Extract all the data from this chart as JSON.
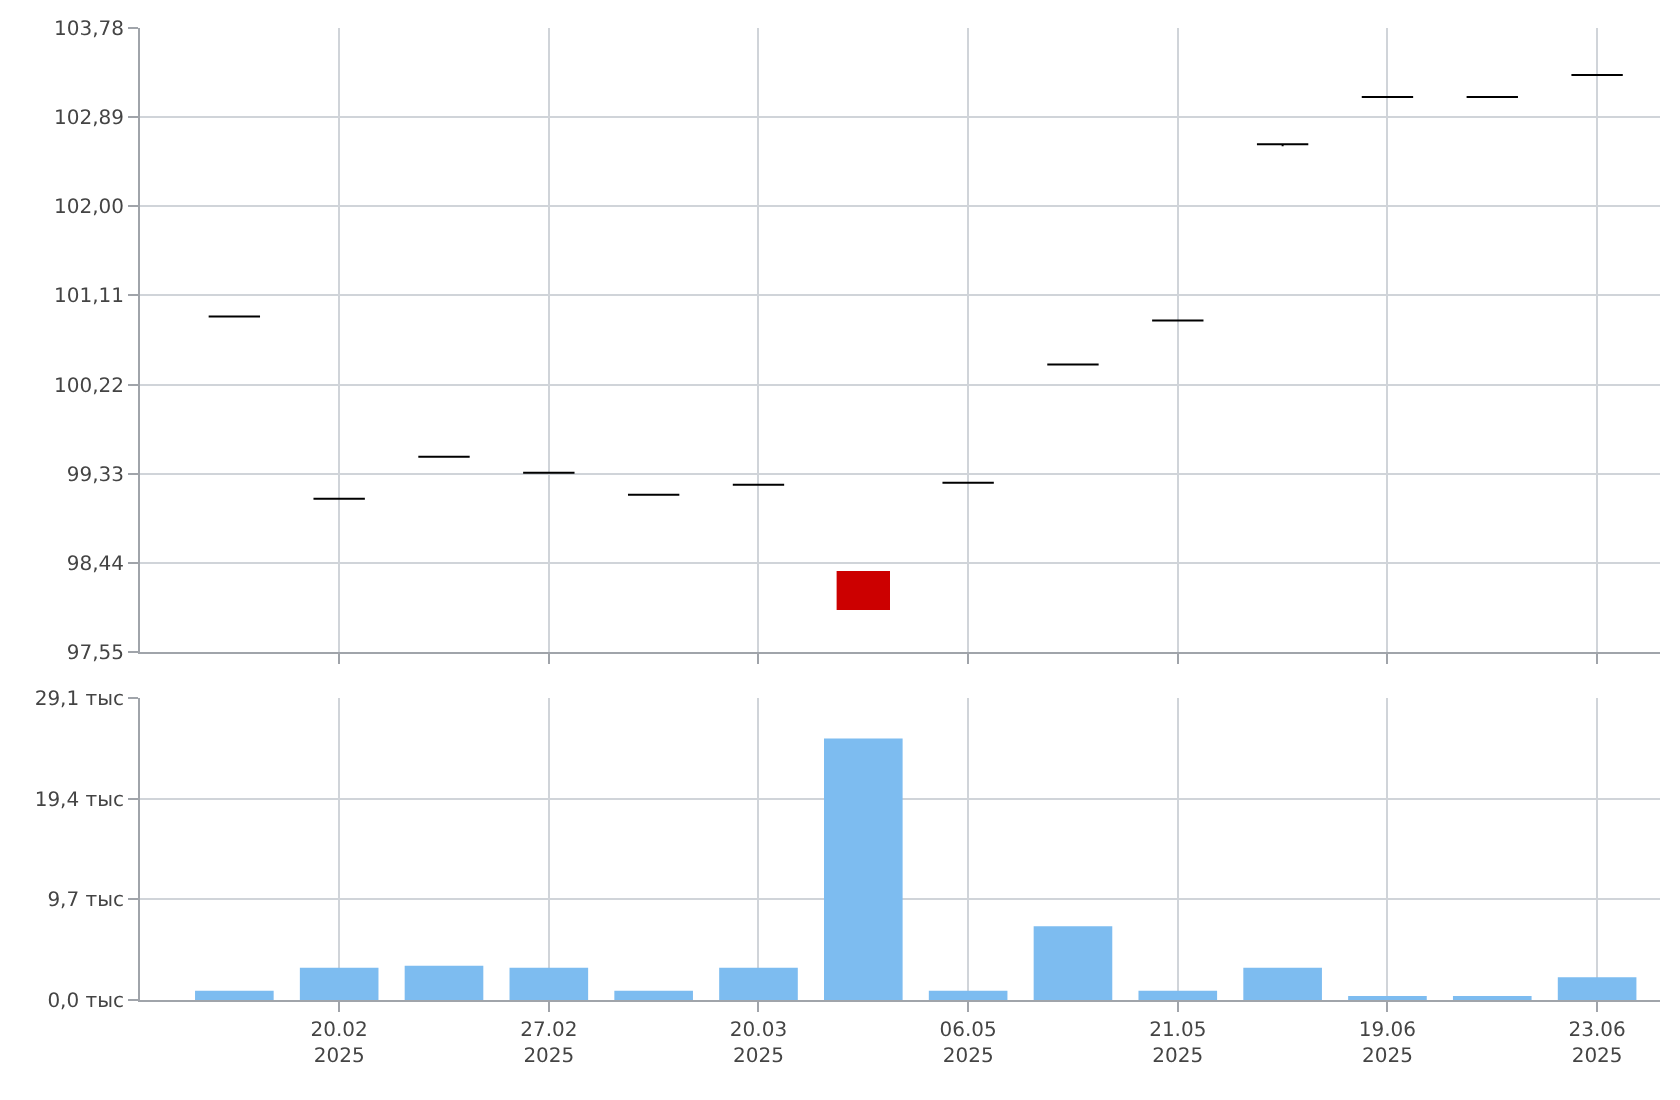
{
  "chart_data": [
    {
      "type": "candlestick",
      "categories": [
        null,
        null,
        null,
        null,
        null,
        null,
        null,
        null,
        null,
        null,
        null,
        null,
        null,
        null
      ],
      "ohlc": [
        [
          100.9,
          100.9,
          100.9,
          100.9
        ],
        [
          99.08,
          99.08,
          99.08,
          99.08
        ],
        [
          99.5,
          99.5,
          99.5,
          99.5
        ],
        [
          99.34,
          99.34,
          99.34,
          99.34
        ],
        [
          99.12,
          99.12,
          99.12,
          99.12
        ],
        [
          99.22,
          99.22,
          99.22,
          99.22
        ],
        [
          98.35,
          98.35,
          97.98,
          97.98
        ],
        [
          99.24,
          99.24,
          99.24,
          99.24
        ],
        [
          100.42,
          100.42,
          100.42,
          100.42
        ],
        [
          100.86,
          100.86,
          100.86,
          100.86
        ],
        [
          102.62,
          102.62,
          102.6,
          102.62
        ],
        [
          103.09,
          103.09,
          103.09,
          103.09
        ],
        [
          103.09,
          103.09,
          103.09,
          103.09
        ],
        [
          103.31,
          103.31,
          103.31,
          103.31
        ]
      ],
      "colors": [
        "#000000",
        "#000000",
        "#000000",
        "#000000",
        "#000000",
        "#000000",
        "#cc0000",
        "#000000",
        "#000000",
        "#000000",
        "#000000",
        "#000000",
        "#000000",
        "#000000"
      ],
      "ylim": [
        97.55,
        103.78
      ],
      "yticks": [
        {
          "value": 97.55,
          "label": "97,55"
        },
        {
          "value": 98.44,
          "label": "98,44"
        },
        {
          "value": 99.33,
          "label": "99,33"
        },
        {
          "value": 100.22,
          "label": "100,22"
        },
        {
          "value": 101.11,
          "label": "101,11"
        },
        {
          "value": 102.0,
          "label": "102,00"
        },
        {
          "value": 102.89,
          "label": "102,89"
        },
        {
          "value": 103.78,
          "label": "103,78"
        }
      ],
      "grid": true,
      "tick_labels": "y"
    },
    {
      "type": "bar",
      "categories": [
        null,
        "20.02\n2025",
        null,
        "27.02\n2025",
        null,
        "20.03\n2025",
        null,
        "06.05\n2025",
        null,
        "21.05\n2025",
        null,
        "19.06\n2025",
        null,
        "23.06\n2025"
      ],
      "values": [
        0.9,
        3.1,
        3.3,
        3.1,
        0.9,
        3.1,
        25.2,
        0.9,
        7.1,
        0.9,
        3.1,
        0.2,
        0.2,
        2.2
      ],
      "color": "#7dbcf0",
      "ylim": [
        0,
        29.1
      ],
      "yticks": [
        {
          "value": 0,
          "label": "0,0 тыс"
        },
        {
          "value": 9.7,
          "label": "9,7 тыс"
        },
        {
          "value": 19.4,
          "label": "19,4 тыс"
        },
        {
          "value": 29.1,
          "label": "29,1 тыс"
        }
      ],
      "grid": true
    }
  ]
}
